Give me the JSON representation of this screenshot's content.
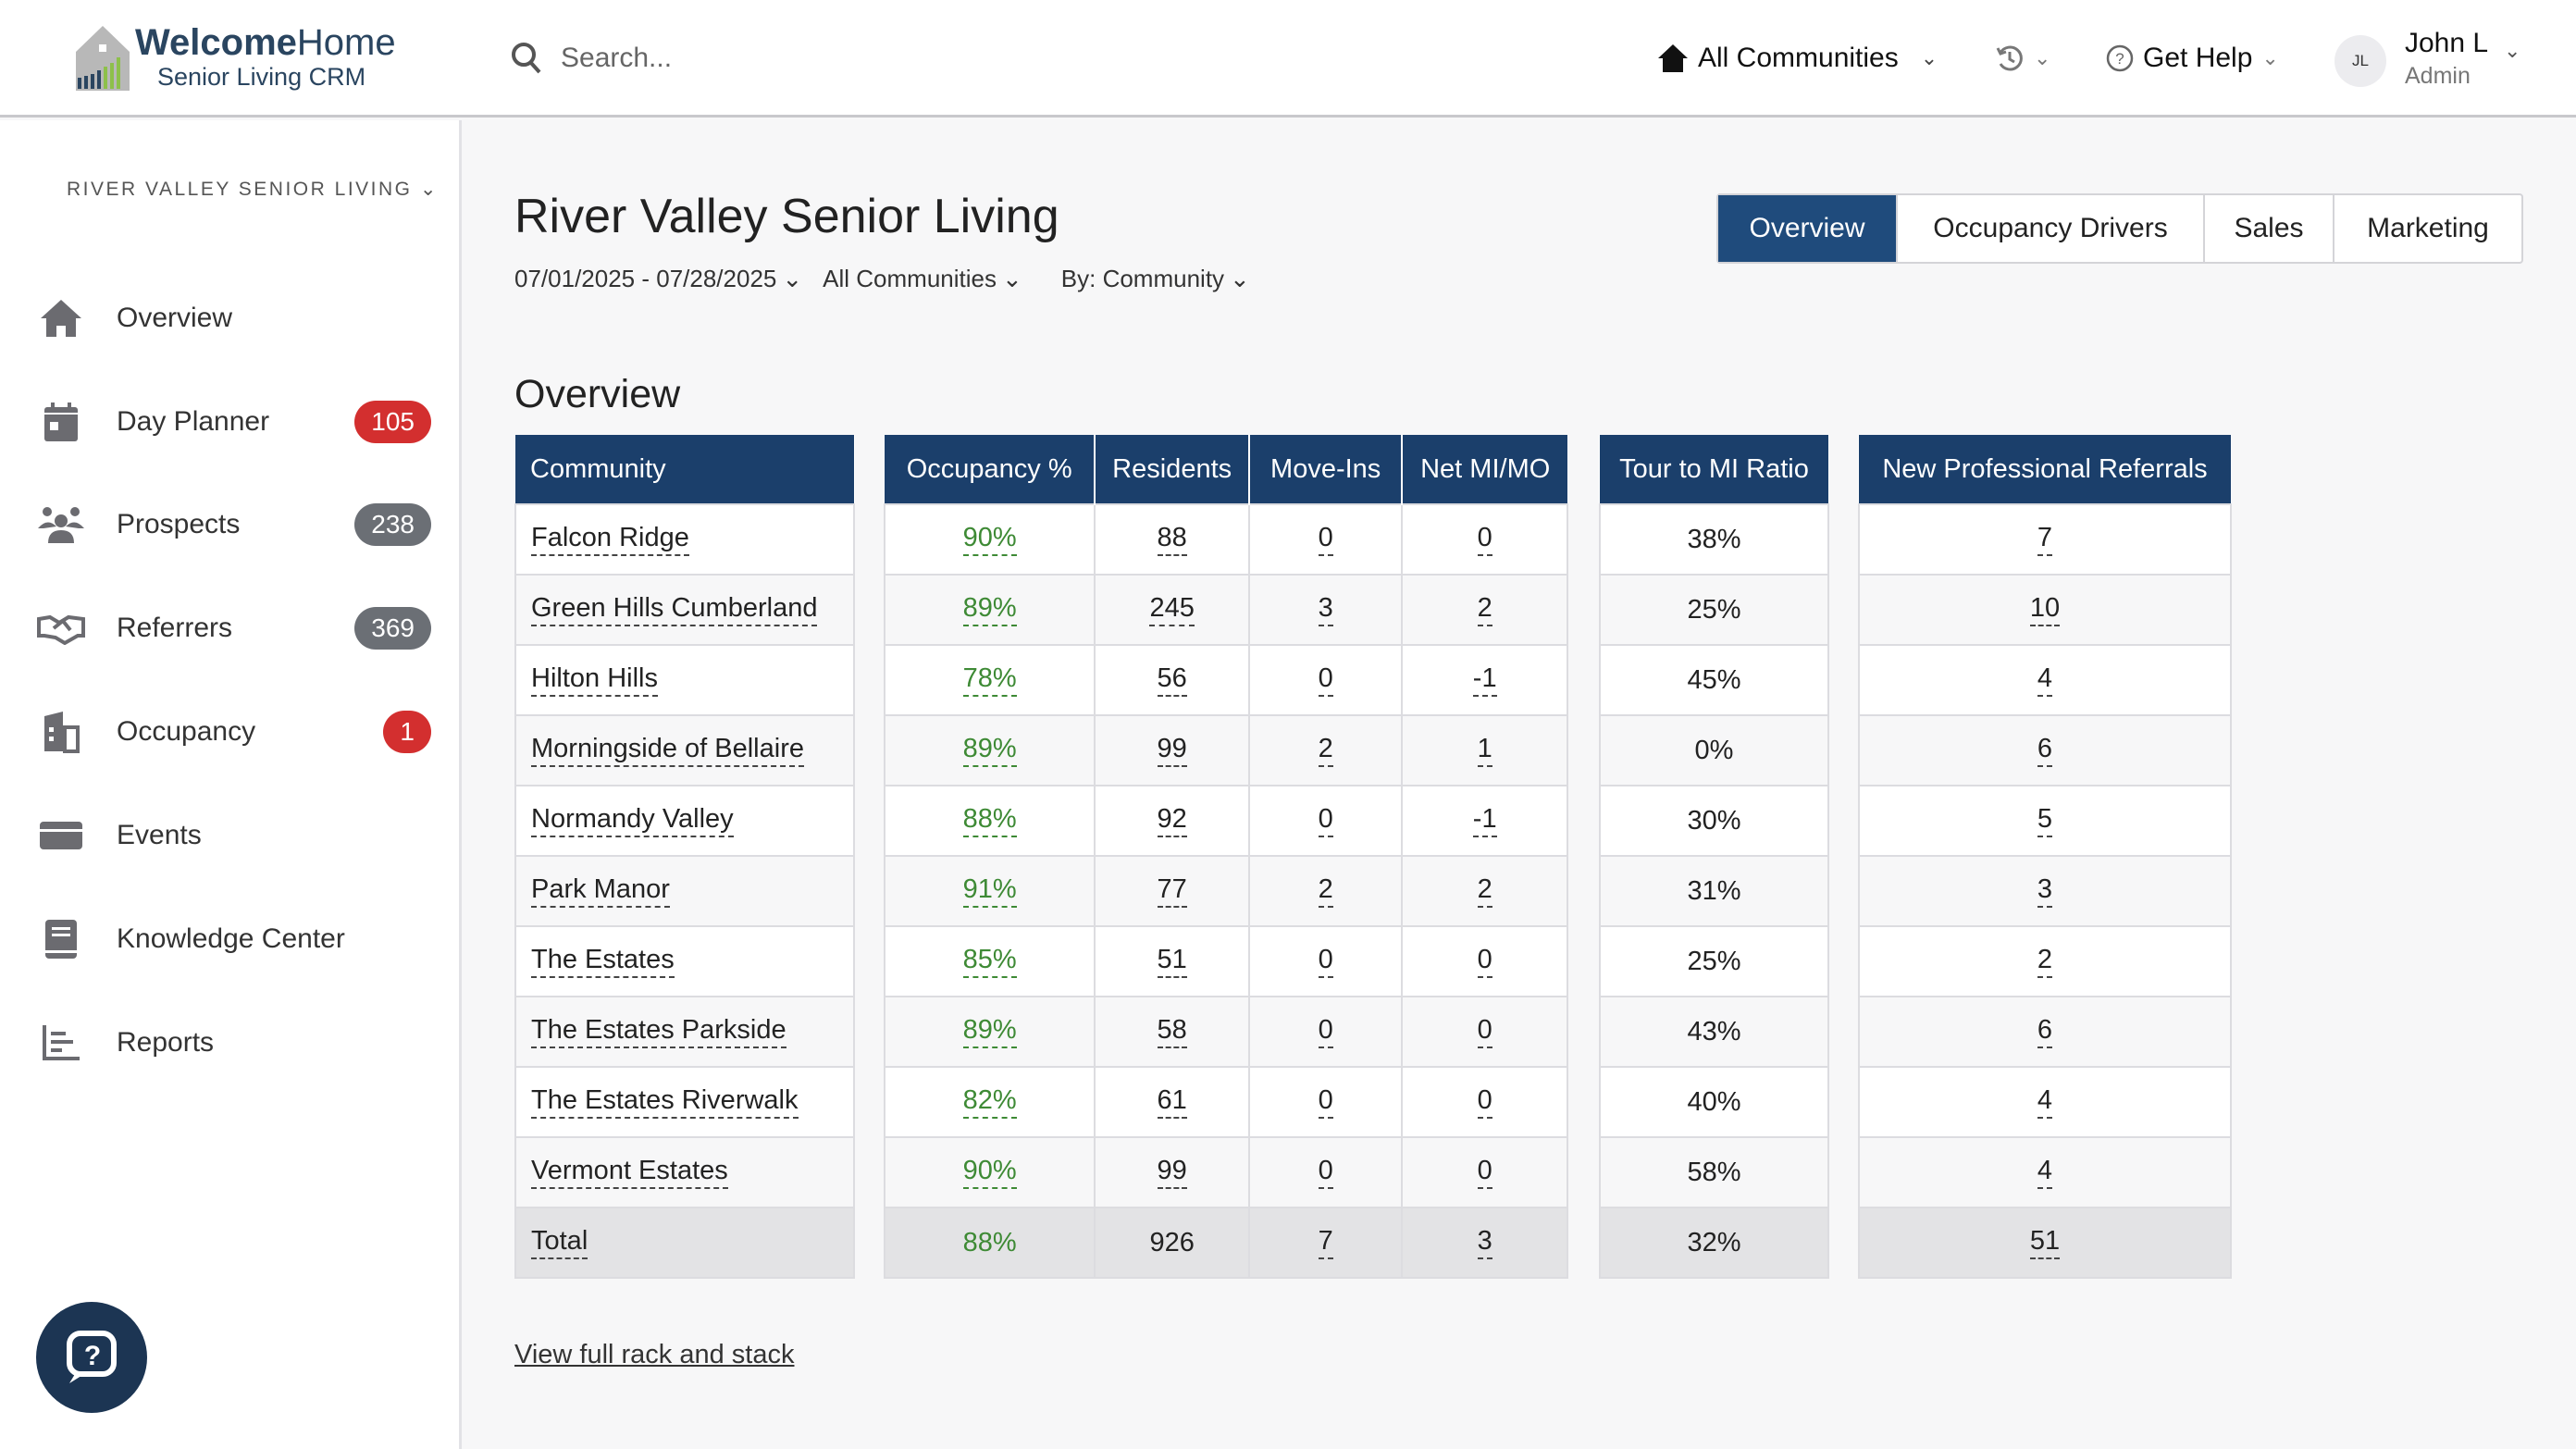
{
  "header": {
    "logo_bold": "Welcome",
    "logo_light": "Home",
    "logo_sub": "Senior Living CRM",
    "search_placeholder": "Search...",
    "communities": "All Communities",
    "help": "Get Help",
    "avatar_initials": "JL",
    "user_name": "John L",
    "user_role": "Admin"
  },
  "sidebar": {
    "title": "RIVER VALLEY SENIOR LIVING",
    "items": [
      {
        "label": "Overview",
        "icon": "home-icon"
      },
      {
        "label": "Day Planner",
        "icon": "calendar-icon",
        "badge": "105",
        "badge_color": "#d32f2f"
      },
      {
        "label": "Prospects",
        "icon": "people-icon",
        "badge": "238",
        "badge_color": "#6b6f75"
      },
      {
        "label": "Referrers",
        "icon": "handshake-icon",
        "badge": "369",
        "badge_color": "#6b6f75"
      },
      {
        "label": "Occupancy",
        "icon": "building-icon",
        "badge": "1",
        "badge_color": "#d32f2f"
      },
      {
        "label": "Events",
        "icon": "ticket-icon"
      },
      {
        "label": "Knowledge Center",
        "icon": "book-icon"
      },
      {
        "label": "Reports",
        "icon": "reports-icon"
      }
    ]
  },
  "page": {
    "title": "River Valley Senior Living",
    "date_range": "07/01/2025 - 07/28/2025",
    "community_filter": "All Communities",
    "group_by": "By: Community",
    "tabs": [
      "Overview",
      "Occupancy Drivers",
      "Sales",
      "Marketing"
    ],
    "section_title": "Overview",
    "link": "View full rack and stack"
  },
  "table": {
    "headers": {
      "community": "Community",
      "occupancy": "Occupancy %",
      "residents": "Residents",
      "move_ins": "Move-Ins",
      "net": "Net MI/MO",
      "tour": "Tour to MI Ratio",
      "referrals": "New Professional Referrals"
    },
    "rows": [
      {
        "name": "Falcon Ridge",
        "occ": "90%",
        "res": "88",
        "mi": "0",
        "net": "0",
        "tour": "38%",
        "ref": "7"
      },
      {
        "name": "Green Hills Cumberland",
        "occ": "89%",
        "res": "245",
        "mi": "3",
        "net": "2",
        "tour": "25%",
        "ref": "10"
      },
      {
        "name": "Hilton Hills",
        "occ": "78%",
        "res": "56",
        "mi": "0",
        "net": "-1",
        "tour": "45%",
        "ref": "4"
      },
      {
        "name": "Morningside of Bellaire",
        "occ": "89%",
        "res": "99",
        "mi": "2",
        "net": "1",
        "tour": "0%",
        "ref": "6"
      },
      {
        "name": "Normandy Valley",
        "occ": "88%",
        "res": "92",
        "mi": "0",
        "net": "-1",
        "tour": "30%",
        "ref": "5"
      },
      {
        "name": "Park Manor",
        "occ": "91%",
        "res": "77",
        "mi": "2",
        "net": "2",
        "tour": "31%",
        "ref": "3"
      },
      {
        "name": "The Estates",
        "occ": "85%",
        "res": "51",
        "mi": "0",
        "net": "0",
        "tour": "25%",
        "ref": "2"
      },
      {
        "name": "The Estates Parkside",
        "occ": "89%",
        "res": "58",
        "mi": "0",
        "net": "0",
        "tour": "43%",
        "ref": "6"
      },
      {
        "name": "The Estates Riverwalk",
        "occ": "82%",
        "res": "61",
        "mi": "0",
        "net": "0",
        "tour": "40%",
        "ref": "4"
      },
      {
        "name": "Vermont Estates",
        "occ": "90%",
        "res": "99",
        "mi": "0",
        "net": "0",
        "tour": "58%",
        "ref": "4"
      }
    ],
    "total": {
      "name": "Total",
      "occ": "88%",
      "res": "926",
      "mi": "7",
      "net": "3",
      "tour": "32%",
      "ref": "51"
    }
  },
  "colors": {
    "header_bg": "#1b3f6b",
    "active_tab": "#1f4b7c",
    "occupancy_green": "#3e8a35"
  }
}
